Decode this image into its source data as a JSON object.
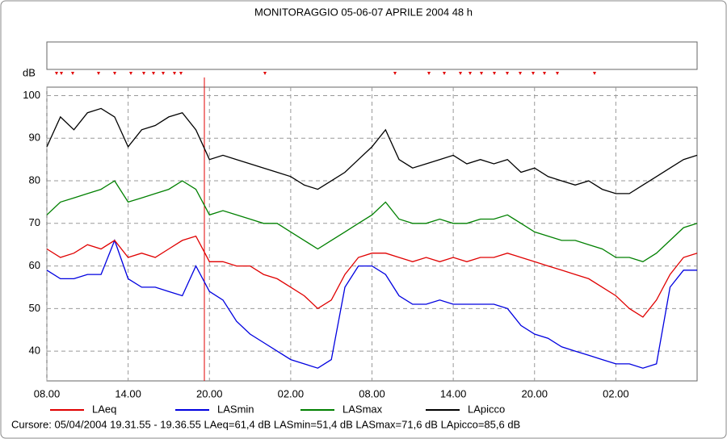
{
  "chart_data": {
    "type": "line",
    "title": "MONITORAGGIO 05-06-07 APRILE 2004 48 h",
    "y_label": "dB",
    "x": [
      0,
      1,
      2,
      3,
      4,
      5,
      6,
      7,
      8,
      9,
      10,
      11,
      12,
      13,
      14,
      15,
      16,
      17,
      18,
      19,
      20,
      21,
      22,
      23,
      24,
      25,
      26,
      27,
      28,
      29,
      30,
      31,
      32,
      33,
      34,
      35,
      36,
      37,
      38,
      39,
      40,
      41,
      42,
      43,
      44,
      45,
      46,
      47,
      48
    ],
    "xlim": [
      0,
      48
    ],
    "xticks": [
      {
        "value": 0,
        "label": "08.00"
      },
      {
        "value": 6,
        "label": "14.00"
      },
      {
        "value": 12,
        "label": "20.00"
      },
      {
        "value": 18,
        "label": "02.00"
      },
      {
        "value": 24,
        "label": "08.00"
      },
      {
        "value": 30,
        "label": "14.00"
      },
      {
        "value": 36,
        "label": "20.00"
      },
      {
        "value": 42,
        "label": "02.00"
      }
    ],
    "ylim": [
      33,
      102
    ],
    "yticks": [
      40,
      50,
      60,
      70,
      80,
      90,
      100
    ],
    "grid": true,
    "series": [
      {
        "name": "LAeq",
        "color": "#e00000",
        "values": [
          64,
          62,
          63,
          65,
          64,
          66,
          62,
          63,
          62,
          64,
          66,
          67,
          61,
          61,
          60,
          60,
          58,
          57,
          55,
          53,
          50,
          52,
          58,
          62,
          63,
          63,
          62,
          61,
          62,
          61,
          62,
          61,
          62,
          62,
          63,
          62,
          61,
          60,
          59,
          58,
          57,
          55,
          53,
          50,
          48,
          52,
          58,
          62,
          63
        ]
      },
      {
        "name": "LASmin",
        "color": "#0000e0",
        "values": [
          59,
          57,
          57,
          58,
          58,
          66,
          57,
          55,
          55,
          54,
          53,
          60,
          54,
          52,
          47,
          44,
          42,
          40,
          38,
          37,
          36,
          38,
          55,
          60,
          60,
          58,
          53,
          51,
          51,
          52,
          51,
          51,
          51,
          51,
          50,
          46,
          44,
          43,
          41,
          40,
          39,
          38,
          37,
          37,
          36,
          37,
          55,
          59,
          59
        ]
      },
      {
        "name": "LASmax",
        "color": "#008000",
        "values": [
          72,
          75,
          76,
          77,
          78,
          80,
          75,
          76,
          77,
          78,
          80,
          78,
          72,
          73,
          72,
          71,
          70,
          70,
          68,
          66,
          64,
          66,
          68,
          70,
          72,
          75,
          71,
          70,
          70,
          71,
          70,
          70,
          71,
          71,
          72,
          70,
          68,
          67,
          66,
          66,
          65,
          64,
          62,
          62,
          61,
          63,
          66,
          69,
          70
        ]
      },
      {
        "name": "LApicco",
        "color": "#000000",
        "values": [
          88,
          95,
          92,
          96,
          97,
          95,
          88,
          92,
          93,
          95,
          96,
          92,
          85,
          86,
          85,
          84,
          83,
          82,
          81,
          79,
          78,
          80,
          82,
          85,
          88,
          92,
          85,
          83,
          84,
          85,
          86,
          84,
          85,
          84,
          85,
          82,
          83,
          81,
          80,
          79,
          80,
          78,
          77,
          77,
          79,
          81,
          83,
          85,
          86
        ]
      }
    ],
    "cursor_text": "Cursore: 05/04/2004 19.31.55 - 19.36.55  LAeq=61,4 dB  LASmin=51,4 dB  LASmax=71,6 dB  LApicco=85,6 dB"
  }
}
